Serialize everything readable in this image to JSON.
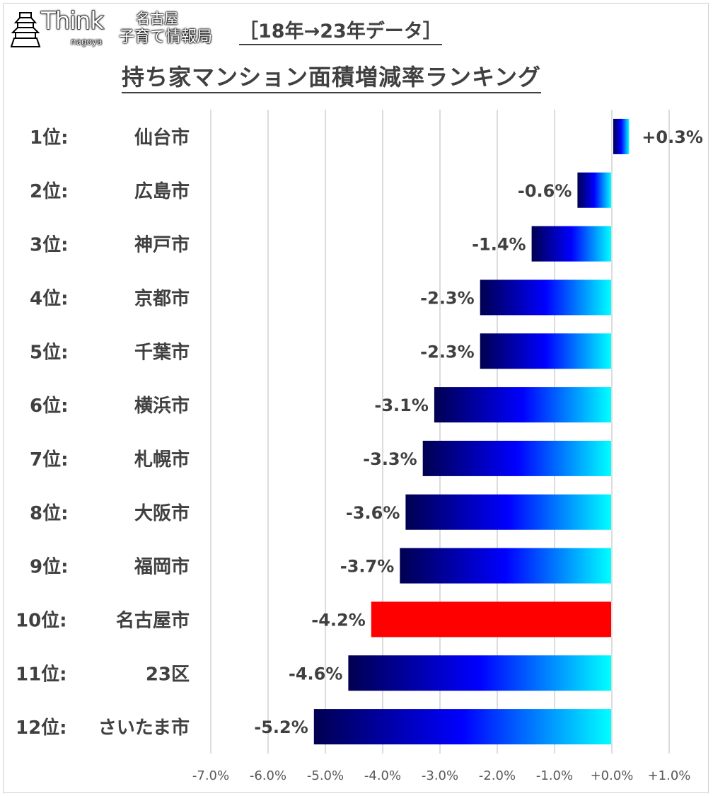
{
  "logo": {
    "think": "Think",
    "nagoya": "nagoya",
    "line1": "名古屋",
    "line2": "子育て情報局"
  },
  "chart_data": {
    "type": "bar",
    "orientation": "horizontal",
    "subtitle": "［18年→23年データ］",
    "title": "持ち家マンション面積増減率ランキング",
    "ranks": [
      "1位:",
      "2位:",
      "3位:",
      "4位:",
      "5位:",
      "6位:",
      "7位:",
      "8位:",
      "9位:",
      "10位:",
      "11位:",
      "12位:"
    ],
    "categories": [
      "仙台市",
      "広島市",
      "神戸市",
      "京都市",
      "千葉市",
      "横浜市",
      "札幌市",
      "大阪市",
      "福岡市",
      "名古屋市",
      "23区",
      "さいたま市"
    ],
    "values": [
      0.3,
      -0.6,
      -1.4,
      -2.3,
      -2.3,
      -3.1,
      -3.3,
      -3.6,
      -3.7,
      -4.2,
      -4.6,
      -5.2
    ],
    "data_labels": [
      "+0.3%",
      "-0.6%",
      "-1.4%",
      "-2.3%",
      "-2.3%",
      "-3.1%",
      "-3.3%",
      "-3.6%",
      "-3.7%",
      "-4.2%",
      "-4.6%",
      "-5.2%"
    ],
    "xlim": [
      -7.0,
      1.0
    ],
    "x_ticks": [
      -7,
      -6,
      -5,
      -4,
      -3,
      -2,
      -1,
      0,
      1
    ],
    "x_tick_labels": [
      "-7.0%",
      "-6.0%",
      "-5.0%",
      "-4.0%",
      "-3.0%",
      "-2.0%",
      "-1.0%",
      "+0.0%",
      "+1.0%"
    ],
    "grid": true,
    "highlight_category": "名古屋市",
    "colors": {
      "gradient": [
        "#000050",
        "#0000ff",
        "#00ffff"
      ],
      "highlight": "#ff0000",
      "grid": "#d0d0d0",
      "text": "#404040"
    }
  }
}
